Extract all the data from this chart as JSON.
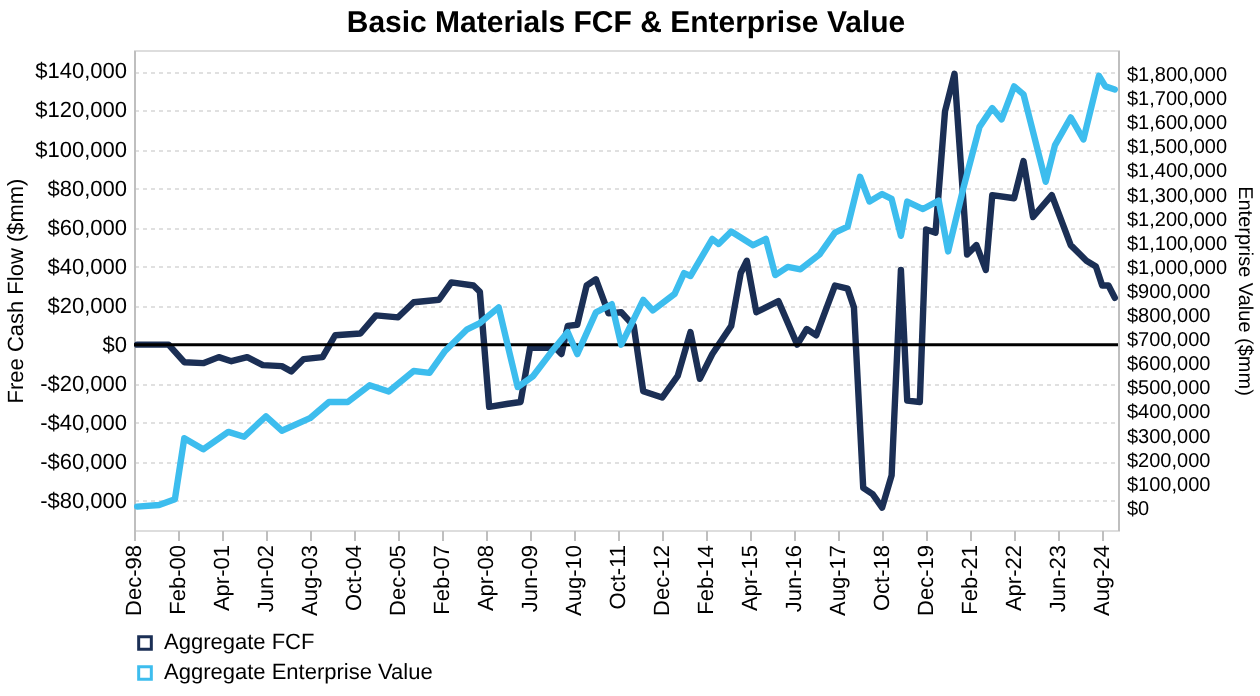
{
  "chart_data": {
    "type": "line",
    "title": "Basic Materials FCF & Enterprise Value",
    "ylabel": "Free Cash Flow ($mm)",
    "y2label": "Enterprise Value ($mm)",
    "xlim": [
      "1998-12",
      "2025-01"
    ],
    "xticks": [
      {
        "value": "1998-12",
        "label": "Dec-98"
      },
      {
        "value": "2000-02",
        "label": "Feb-00"
      },
      {
        "value": "2001-04",
        "label": "Apr-01"
      },
      {
        "value": "2002-06",
        "label": "Jun-02"
      },
      {
        "value": "2003-08",
        "label": "Aug-03"
      },
      {
        "value": "2004-10",
        "label": "Oct-04"
      },
      {
        "value": "2005-12",
        "label": "Dec-05"
      },
      {
        "value": "2007-02",
        "label": "Feb-07"
      },
      {
        "value": "2008-04",
        "label": "Apr-08"
      },
      {
        "value": "2009-06",
        "label": "Jun-09"
      },
      {
        "value": "2010-08",
        "label": "Aug-10"
      },
      {
        "value": "2011-10",
        "label": "Oct-11"
      },
      {
        "value": "2012-12",
        "label": "Dec-12"
      },
      {
        "value": "2014-02",
        "label": "Feb-14"
      },
      {
        "value": "2015-04",
        "label": "Apr-15"
      },
      {
        "value": "2016-06",
        "label": "Jun-16"
      },
      {
        "value": "2017-08",
        "label": "Aug-17"
      },
      {
        "value": "2018-10",
        "label": "Oct-18"
      },
      {
        "value": "2019-12",
        "label": "Dec-19"
      },
      {
        "value": "2021-02",
        "label": "Feb-21"
      },
      {
        "value": "2022-04",
        "label": "Apr-22"
      },
      {
        "value": "2023-06",
        "label": "Jun-23"
      },
      {
        "value": "2024-08",
        "label": "Aug-24"
      }
    ],
    "ylim": [
      -95000,
      151000
    ],
    "yticks": [
      {
        "value": -80000,
        "label": "-$80,000"
      },
      {
        "value": -60000,
        "label": "-$60,000"
      },
      {
        "value": -40000,
        "label": "-$40,000"
      },
      {
        "value": -20000,
        "label": "-$20,000"
      },
      {
        "value": 0,
        "label": "$0"
      },
      {
        "value": 20000,
        "label": "$20,000"
      },
      {
        "value": 40000,
        "label": "$40,000"
      },
      {
        "value": 60000,
        "label": "$60,000"
      },
      {
        "value": 80000,
        "label": "$80,000"
      },
      {
        "value": 100000,
        "label": "$100,000"
      },
      {
        "value": 120000,
        "label": "$120,000"
      },
      {
        "value": 140000,
        "label": "$140,000"
      }
    ],
    "y2lim": [
      -92000,
      1900000
    ],
    "y2ticks": [
      {
        "value": 0,
        "label": "$0"
      },
      {
        "value": 100000,
        "label": "$100,000"
      },
      {
        "value": 200000,
        "label": "$200,000"
      },
      {
        "value": 300000,
        "label": "$300,000"
      },
      {
        "value": 400000,
        "label": "$400,000"
      },
      {
        "value": 500000,
        "label": "$500,000"
      },
      {
        "value": 600000,
        "label": "$600,000"
      },
      {
        "value": 700000,
        "label": "$700,000"
      },
      {
        "value": 800000,
        "label": "$800,000"
      },
      {
        "value": 900000,
        "label": "$900,000"
      },
      {
        "value": 1000000,
        "label": "$1,000,000"
      },
      {
        "value": 1100000,
        "label": "$1,100,000"
      },
      {
        "value": 1200000,
        "label": "$1,200,000"
      },
      {
        "value": 1300000,
        "label": "$1,300,000"
      },
      {
        "value": 1400000,
        "label": "$1,400,000"
      },
      {
        "value": 1500000,
        "label": "$1,500,000"
      },
      {
        "value": 1600000,
        "label": "$1,600,000"
      },
      {
        "value": 1700000,
        "label": "$1,700,000"
      },
      {
        "value": 1800000,
        "label": "$1,800,000"
      }
    ],
    "grid": "y",
    "legend": "bottom left",
    "marker": "none",
    "line_style": "solid",
    "ref_lines": [
      {
        "axis": "y",
        "value": 0,
        "color": "#000000"
      }
    ],
    "series": [
      {
        "name": "Aggregate FCF",
        "color": "#1b2f55",
        "x": [
          "1999-01",
          "1999-11",
          "2000-04",
          "2000-10",
          "2001-03",
          "2001-07",
          "2001-12",
          "2002-05",
          "2002-11",
          "2003-02",
          "2003-06",
          "2003-12",
          "2004-04",
          "2004-12",
          "2005-05",
          "2005-12",
          "2006-05",
          "2007-01",
          "2007-05",
          "2007-12",
          "2008-02",
          "2008-05",
          "2008-11",
          "2009-03",
          "2009-06",
          "2010-02",
          "2010-04",
          "2010-06",
          "2010-09",
          "2010-12",
          "2011-03",
          "2011-07",
          "2011-11",
          "2012-03",
          "2012-06",
          "2012-12",
          "2013-05",
          "2013-09",
          "2013-12",
          "2014-04",
          "2014-10",
          "2015-01",
          "2015-03",
          "2015-06",
          "2016-01",
          "2016-07",
          "2016-10",
          "2017-01",
          "2017-07",
          "2017-11",
          "2018-01",
          "2018-04",
          "2018-07",
          "2018-10",
          "2019-01",
          "2019-04",
          "2019-06",
          "2019-10",
          "2019-12",
          "2020-03",
          "2020-06",
          "2020-09",
          "2021-01",
          "2021-04",
          "2021-07",
          "2021-09",
          "2022-04",
          "2022-07",
          "2022-10",
          "2023-04",
          "2023-10",
          "2024-03",
          "2024-06",
          "2024-08",
          "2024-10",
          "2024-12"
        ],
        "values": [
          0,
          0,
          -9000,
          -9500,
          -6400,
          -8500,
          -6400,
          -10500,
          -11000,
          -13700,
          -7400,
          -6400,
          4800,
          5700,
          15000,
          14000,
          21700,
          23000,
          31900,
          30300,
          27100,
          -31900,
          -30300,
          -29400,
          -1600,
          -1600,
          -4800,
          9600,
          10200,
          30300,
          33500,
          16000,
          16600,
          9600,
          -23900,
          -27100,
          -16000,
          6400,
          -17500,
          -4800,
          9600,
          36700,
          43000,
          16600,
          22300,
          0,
          8000,
          4800,
          30300,
          28700,
          19100,
          -73400,
          -76600,
          -83500,
          -67000,
          38300,
          -28700,
          -29400,
          59000,
          57400,
          119600,
          138800,
          46200,
          51000,
          38300,
          76600,
          75000,
          94100,
          65400,
          76600,
          51000,
          43000,
          40000,
          30300,
          30300,
          24000
        ]
      },
      {
        "name": "Aggregate Enterprise Value",
        "color": "#3dbdee",
        "axis": "y2",
        "x": [
          "1999-01",
          "1999-08",
          "2000-01",
          "2000-04",
          "2000-10",
          "2001-06",
          "2001-11",
          "2002-06",
          "2002-11",
          "2003-08",
          "2004-02",
          "2004-08",
          "2005-03",
          "2005-09",
          "2006-05",
          "2006-10",
          "2007-03",
          "2007-10",
          "2008-02",
          "2008-08",
          "2009-02",
          "2009-07",
          "2010-01",
          "2010-06",
          "2010-09",
          "2011-03",
          "2011-08",
          "2011-11",
          "2012-06",
          "2012-09",
          "2013-04",
          "2013-07",
          "2013-09",
          "2014-04",
          "2014-06",
          "2014-10",
          "2015-05",
          "2015-09",
          "2015-12",
          "2016-04",
          "2016-08",
          "2017-02",
          "2017-07",
          "2017-11",
          "2018-03",
          "2018-06",
          "2018-10",
          "2019-01",
          "2019-04",
          "2019-06",
          "2019-11",
          "2020-04",
          "2020-07",
          "2020-12",
          "2021-05",
          "2021-09",
          "2021-12",
          "2022-04",
          "2022-07",
          "2023-02",
          "2023-05",
          "2023-10",
          "2024-02",
          "2024-07",
          "2024-09",
          "2024-12"
        ],
        "values": [
          5000,
          12000,
          36000,
          289000,
          243000,
          315000,
          295000,
          380000,
          320000,
          372000,
          439000,
          439000,
          509000,
          483000,
          568000,
          560000,
          651000,
          741000,
          767000,
          832000,
          501000,
          547000,
          651000,
          729000,
          638000,
          811000,
          845000,
          677000,
          863000,
          819000,
          888000,
          974000,
          962000,
          1116000,
          1095000,
          1147000,
          1090000,
          1116000,
          966000,
          1000000,
          990000,
          1051000,
          1142000,
          1167000,
          1374000,
          1271000,
          1302000,
          1282000,
          1129000,
          1271000,
          1240000,
          1275000,
          1064000,
          1336000,
          1581000,
          1659000,
          1612000,
          1749000,
          1716000,
          1353000,
          1504000,
          1620000,
          1529000,
          1793000,
          1749000,
          1736000
        ]
      }
    ]
  }
}
